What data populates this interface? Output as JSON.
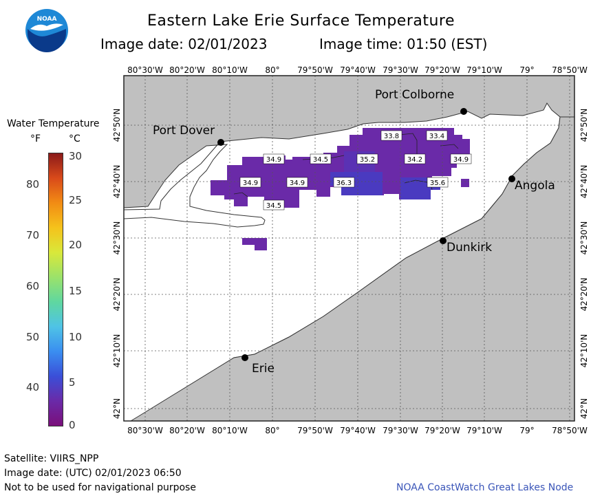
{
  "title": "Eastern Lake Erie Surface Temperature",
  "image_date_label": "Image date: 02/01/2023",
  "image_time_label": "Image time: 01:50 (EST)",
  "logo": {
    "text": "NOAA",
    "colors": {
      "outer": "#1e88d6",
      "inner": "#0a3a8a",
      "bird": "#ffffff"
    }
  },
  "legend": {
    "title": "Water Temperature",
    "unit_f": "°F",
    "unit_c": "°C",
    "f_ticks": [
      "80",
      "70",
      "60",
      "50",
      "40"
    ],
    "c_ticks": [
      "30",
      "25",
      "20",
      "15",
      "10",
      "5",
      "0"
    ],
    "gradient": [
      "#8b1a1a",
      "#d94a1a",
      "#f28c14",
      "#f5c21b",
      "#d9e83a",
      "#9be26a",
      "#5fd7a0",
      "#4fc3e6",
      "#3a8ef0",
      "#3a4fd8",
      "#6a2aa8",
      "#7a0f7a"
    ]
  },
  "axes": {
    "lon_labels": [
      "80°30'W",
      "80°20'W",
      "80°10'W",
      "80°",
      "79°50'W",
      "79°40'W",
      "79°30'W",
      "79°20'W",
      "79°10'W",
      "79°",
      "78°50'W"
    ],
    "lat_labels": [
      "42°50'N",
      "42°40'N",
      "42°30'N",
      "42°20'N",
      "42°10'N",
      "42°N"
    ]
  },
  "places": [
    {
      "name": "Port Colborne"
    },
    {
      "name": "Port Dover"
    },
    {
      "name": "Angola"
    },
    {
      "name": "Dunkirk"
    },
    {
      "name": "Erie"
    }
  ],
  "temperature_labels": [
    "33.8",
    "33.4",
    "34.9",
    "34.5",
    "35.2",
    "34.2",
    "34.9",
    "34.9",
    "34.9",
    "36.3",
    "35.6",
    "34.5"
  ],
  "colors": {
    "land": "#c0c0c0",
    "water": "#ffffff",
    "sst_purple": "#6a2aa8",
    "sst_blue": "#4a3ac0",
    "grid": "#555555"
  },
  "footer": {
    "satellite": "Satellite: VIIRS_NPP",
    "utc_date": "Image date: (UTC) 02/01/2023  06:50",
    "disclaimer": "Not to be used for navigational purpose",
    "credit": "NOAA CoastWatch Great Lakes Node"
  }
}
